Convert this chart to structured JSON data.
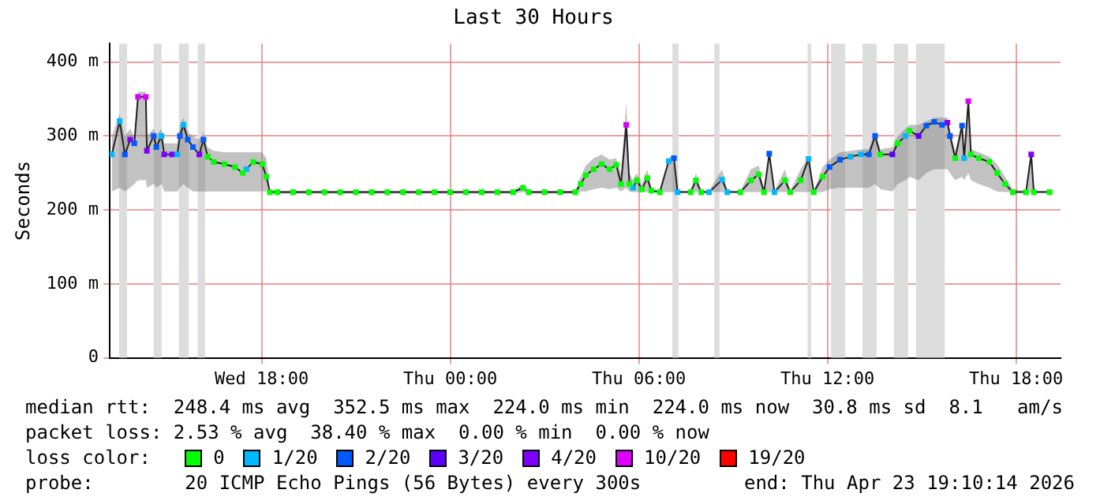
{
  "chart_data": {
    "type": "line",
    "title": "Last 30 Hours",
    "ylabel": "Seconds",
    "legend_title": "loss color:",
    "legend": "bottom",
    "grid": true,
    "marker": "square",
    "xlim": [
      "2026-04-22T13:10",
      "2026-04-23T19:25"
    ],
    "xticks": [
      {
        "value": "2026-04-22T18:00",
        "label": "Wed 18:00"
      },
      {
        "value": "2026-04-23T00:00",
        "label": "Thu 00:00"
      },
      {
        "value": "2026-04-23T06:00",
        "label": "Thu 06:00"
      },
      {
        "value": "2026-04-23T12:00",
        "label": "Thu 12:00"
      },
      {
        "value": "2026-04-23T18:00",
        "label": "Thu 18:00"
      }
    ],
    "ylim": [
      0,
      425
    ],
    "yticks": [
      0,
      {
        "value": 100,
        "label": "100 m"
      },
      {
        "value": 200,
        "label": "200 m"
      },
      {
        "value": 300,
        "label": "300 m"
      },
      {
        "value": 400,
        "label": "400 m"
      }
    ],
    "x": [
      "2026-04-22T13:14",
      "2026-04-22T13:29",
      "2026-04-22T13:39",
      "2026-04-22T13:49",
      "2026-04-22T13:57",
      "2026-04-22T14:04",
      "2026-04-22T14:19",
      "2026-04-22T14:21",
      "2026-04-22T14:34",
      "2026-04-22T14:39",
      "2026-04-22T14:49",
      "2026-04-22T14:54",
      "2026-04-22T15:09",
      "2026-04-22T15:19",
      "2026-04-22T15:24",
      "2026-04-22T15:31",
      "2026-04-22T15:39",
      "2026-04-22T15:49",
      "2026-04-22T16:01",
      "2026-04-22T16:09",
      "2026-04-22T16:17",
      "2026-04-22T16:29",
      "2026-04-22T16:49",
      "2026-04-22T17:09",
      "2026-04-22T17:24",
      "2026-04-22T17:31",
      "2026-04-22T17:44",
      "2026-04-22T18:01",
      "2026-04-22T18:09",
      "2026-04-22T18:16",
      "2026-04-22T18:30",
      "2026-04-22T19:00",
      "2026-04-22T19:30",
      "2026-04-22T20:00",
      "2026-04-22T20:30",
      "2026-04-22T21:00",
      "2026-04-22T21:30",
      "2026-04-22T22:00",
      "2026-04-22T22:30",
      "2026-04-22T23:00",
      "2026-04-22T23:30",
      "2026-04-23T00:00",
      "2026-04-23T00:30",
      "2026-04-23T01:00",
      "2026-04-23T01:30",
      "2026-04-23T02:00",
      "2026-04-23T02:19",
      "2026-04-23T02:30",
      "2026-04-23T03:00",
      "2026-04-23T03:30",
      "2026-04-23T03:59",
      "2026-04-23T04:09",
      "2026-04-23T04:19",
      "2026-04-23T04:34",
      "2026-04-23T04:49",
      "2026-04-23T05:04",
      "2026-04-23T05:17",
      "2026-04-23T05:26",
      "2026-04-23T05:36",
      "2026-04-23T05:42",
      "2026-04-23T05:49",
      "2026-04-23T05:56",
      "2026-04-23T06:06",
      "2026-04-23T06:16",
      "2026-04-23T06:24",
      "2026-04-23T06:40",
      "2026-04-23T06:57",
      "2026-04-23T07:07",
      "2026-04-23T07:14",
      "2026-04-23T07:39",
      "2026-04-23T07:49",
      "2026-04-23T07:59",
      "2026-04-23T08:14",
      "2026-04-23T08:39",
      "2026-04-23T08:49",
      "2026-04-23T09:14",
      "2026-04-23T09:34",
      "2026-04-23T09:49",
      "2026-04-23T09:59",
      "2026-04-23T10:09",
      "2026-04-23T10:19",
      "2026-04-23T10:39",
      "2026-04-23T10:49",
      "2026-04-23T11:09",
      "2026-04-23T11:24",
      "2026-04-23T11:34",
      "2026-04-23T11:51",
      "2026-04-23T12:04",
      "2026-04-23T12:24",
      "2026-04-23T12:44",
      "2026-04-23T13:04",
      "2026-04-23T13:19",
      "2026-04-23T13:31",
      "2026-04-23T13:41",
      "2026-04-23T14:04",
      "2026-04-23T14:14",
      "2026-04-23T14:29",
      "2026-04-23T14:37",
      "2026-04-23T14:54",
      "2026-04-23T15:09",
      "2026-04-23T15:24",
      "2026-04-23T15:39",
      "2026-04-23T15:49",
      "2026-04-23T15:54",
      "2026-04-23T16:04",
      "2026-04-23T16:17",
      "2026-04-23T16:21",
      "2026-04-23T16:29",
      "2026-04-23T16:34",
      "2026-04-23T16:49",
      "2026-04-23T17:09",
      "2026-04-23T17:24",
      "2026-04-23T17:39",
      "2026-04-23T17:54",
      "2026-04-23T18:19",
      "2026-04-23T18:29",
      "2026-04-23T18:34",
      "2026-04-23T19:04"
    ],
    "series": [
      {
        "color": "#202020",
        "marker": "none",
        "values": [
          275,
          320,
          275,
          295,
          290,
          353,
          353,
          280,
          300,
          285,
          300,
          275,
          275,
          275,
          300,
          315,
          295,
          285,
          275,
          295,
          272,
          265,
          262,
          258,
          250,
          255,
          265,
          262,
          245,
          224,
          224,
          224,
          224,
          224,
          224,
          224,
          224,
          224,
          224,
          224,
          224,
          224,
          224,
          224,
          224,
          224,
          230,
          224,
          224,
          224,
          224,
          235,
          247,
          255,
          262,
          255,
          261,
          235,
          315,
          235,
          230,
          240,
          228,
          243,
          226,
          224,
          266,
          270,
          224,
          224,
          240,
          224,
          224,
          241,
          224,
          224,
          240,
          248,
          224,
          276,
          224,
          240,
          224,
          240,
          269,
          224,
          245,
          258,
          268,
          272,
          275,
          275,
          300,
          275,
          275,
          290,
          300,
          307,
          300,
          314,
          319,
          315,
          318,
          300,
          270,
          314,
          270,
          347,
          275,
          270,
          265,
          250,
          235,
          224,
          224,
          275,
          224,
          224
        ],
        "lower": [
          225,
          230,
          225,
          230,
          235,
          240,
          240,
          230,
          235,
          230,
          235,
          225,
          225,
          225,
          230,
          235,
          230,
          225,
          225,
          225,
          225,
          225,
          225,
          225,
          225,
          225,
          225,
          225,
          225,
          222,
          222,
          222,
          222,
          222,
          222,
          222,
          222,
          222,
          222,
          222,
          222,
          222,
          222,
          222,
          222,
          222,
          224,
          222,
          222,
          222,
          222,
          225,
          225,
          228,
          230,
          228,
          230,
          225,
          230,
          225,
          224,
          224,
          224,
          224,
          224,
          224,
          224,
          224,
          224,
          224,
          224,
          224,
          224,
          224,
          224,
          224,
          224,
          224,
          224,
          224,
          224,
          224,
          224,
          224,
          224,
          224,
          224,
          228,
          230,
          230,
          230,
          230,
          235,
          228,
          225,
          235,
          240,
          245,
          240,
          250,
          255,
          255,
          255,
          250,
          240,
          245,
          240,
          250,
          240,
          235,
          230,
          225,
          224,
          224,
          224,
          224,
          224,
          224
        ],
        "upper": [
          300,
          330,
          300,
          310,
          300,
          360,
          360,
          300,
          310,
          300,
          310,
          290,
          290,
          290,
          315,
          325,
          305,
          300,
          295,
          305,
          285,
          280,
          278,
          278,
          278,
          278,
          278,
          278,
          270,
          226,
          226,
          226,
          226,
          226,
          226,
          226,
          226,
          226,
          226,
          226,
          226,
          226,
          226,
          226,
          226,
          226,
          235,
          226,
          226,
          226,
          226,
          245,
          260,
          270,
          275,
          268,
          270,
          250,
          345,
          250,
          240,
          250,
          235,
          255,
          230,
          226,
          270,
          275,
          226,
          226,
          250,
          226,
          226,
          255,
          226,
          226,
          255,
          260,
          226,
          280,
          226,
          255,
          226,
          255,
          272,
          226,
          258,
          268,
          278,
          280,
          282,
          282,
          305,
          282,
          285,
          300,
          310,
          315,
          315,
          320,
          325,
          325,
          325,
          310,
          280,
          320,
          280,
          350,
          282,
          278,
          272,
          262,
          245,
          228,
          226,
          278,
          226,
          226
        ]
      },
      {
        "name": "0",
        "type": "scatter",
        "color": "#00ff00",
        "x": [
          "2026-04-22T16:17",
          "2026-04-22T16:29",
          "2026-04-22T16:49",
          "2026-04-22T17:09",
          "2026-04-22T17:24",
          "2026-04-22T17:44",
          "2026-04-22T18:01",
          "2026-04-22T18:09",
          "2026-04-22T18:16",
          "2026-04-22T18:30",
          "2026-04-22T19:00",
          "2026-04-22T19:30",
          "2026-04-22T20:00",
          "2026-04-22T20:30",
          "2026-04-22T21:00",
          "2026-04-22T21:30",
          "2026-04-22T22:00",
          "2026-04-22T22:30",
          "2026-04-22T23:00",
          "2026-04-22T23:30",
          "2026-04-23T00:00",
          "2026-04-23T00:30",
          "2026-04-23T01:00",
          "2026-04-23T01:30",
          "2026-04-23T02:00",
          "2026-04-23T02:19",
          "2026-04-23T02:30",
          "2026-04-23T03:00",
          "2026-04-23T03:30",
          "2026-04-23T03:59",
          "2026-04-23T04:09",
          "2026-04-23T04:19",
          "2026-04-23T04:34",
          "2026-04-23T04:49",
          "2026-04-23T05:04",
          "2026-04-23T05:17",
          "2026-04-23T05:26",
          "2026-04-23T05:42",
          "2026-04-23T05:56",
          "2026-04-23T06:06",
          "2026-04-23T06:16",
          "2026-04-23T06:24",
          "2026-04-23T06:40",
          "2026-04-23T07:39",
          "2026-04-23T07:49",
          "2026-04-23T07:59",
          "2026-04-23T09:14",
          "2026-04-23T09:34",
          "2026-04-23T09:49",
          "2026-04-23T09:59",
          "2026-04-23T10:39",
          "2026-04-23T10:49",
          "2026-04-23T11:09",
          "2026-04-23T11:34",
          "2026-04-23T11:51",
          "2026-04-23T13:41",
          "2026-04-23T14:14",
          "2026-04-23T14:37",
          "2026-04-23T16:04",
          "2026-04-23T16:34",
          "2026-04-23T16:49",
          "2026-04-23T17:09",
          "2026-04-23T17:24",
          "2026-04-23T17:39",
          "2026-04-23T17:54",
          "2026-04-23T18:19",
          "2026-04-23T18:34",
          "2026-04-23T19:04"
        ],
        "values": [
          272,
          265,
          262,
          258,
          250,
          265,
          262,
          245,
          224,
          224,
          224,
          224,
          224,
          224,
          224,
          224,
          224,
          224,
          224,
          224,
          224,
          224,
          224,
          224,
          224,
          230,
          224,
          224,
          224,
          224,
          235,
          247,
          255,
          262,
          255,
          261,
          235,
          235,
          240,
          228,
          243,
          226,
          224,
          224,
          240,
          224,
          224,
          240,
          248,
          224,
          240,
          224,
          240,
          224,
          245,
          275,
          290,
          307,
          270,
          275,
          270,
          265,
          250,
          235,
          224,
          224,
          224,
          224
        ]
      },
      {
        "name": "1/20",
        "type": "scatter",
        "color": "#00b8ff",
        "x": [
          "2026-04-22T13:14",
          "2026-04-22T13:29",
          "2026-04-22T14:49",
          "2026-04-22T15:19",
          "2026-04-22T15:31",
          "2026-04-22T17:31",
          "2026-04-23T05:49",
          "2026-04-23T06:57",
          "2026-04-23T07:14",
          "2026-04-23T08:14",
          "2026-04-23T08:39",
          "2026-04-23T08:49",
          "2026-04-23T10:19",
          "2026-04-23T11:24",
          "2026-04-23T12:44",
          "2026-04-23T13:04",
          "2026-04-23T14:29",
          "2026-04-23T16:21"
        ],
        "values": [
          275,
          320,
          300,
          275,
          315,
          255,
          230,
          266,
          224,
          224,
          241,
          224,
          224,
          269,
          272,
          275,
          300,
          270
        ]
      },
      {
        "name": "2/20",
        "type": "scatter",
        "color": "#0059ff",
        "x": [
          "2026-04-22T13:39",
          "2026-04-22T13:57",
          "2026-04-22T14:34",
          "2026-04-22T14:39",
          "2026-04-22T15:24",
          "2026-04-22T15:39",
          "2026-04-22T15:49",
          "2026-04-22T16:09",
          "2026-04-23T07:07",
          "2026-04-23T10:09",
          "2026-04-23T12:04",
          "2026-04-23T12:24",
          "2026-04-23T13:19",
          "2026-04-23T13:31",
          "2026-04-23T15:09",
          "2026-04-23T15:24",
          "2026-04-23T15:39",
          "2026-04-23T15:54",
          "2026-04-23T16:17"
        ],
        "values": [
          275,
          290,
          300,
          285,
          300,
          295,
          285,
          295,
          270,
          276,
          258,
          268,
          275,
          300,
          314,
          319,
          315,
          300,
          314
        ]
      },
      {
        "name": "3/20",
        "type": "scatter",
        "color": "#5e00ff",
        "x": [
          "2026-04-23T14:04",
          "2026-04-23T14:54"
        ],
        "values": [
          275,
          300
        ]
      },
      {
        "name": "4/20",
        "type": "scatter",
        "color": "#7e00ff",
        "x": [
          "2026-04-22T13:49",
          "2026-04-22T14:21",
          "2026-04-22T14:54",
          "2026-04-22T15:09",
          "2026-04-22T16:01",
          "2026-04-23T15:49",
          "2026-04-23T18:29"
        ],
        "values": [
          295,
          280,
          275,
          275,
          275,
          318,
          275
        ]
      },
      {
        "name": "10/20",
        "type": "scatter",
        "color": "#dd00ff",
        "x": [
          "2026-04-22T14:04",
          "2026-04-22T14:19",
          "2026-04-23T05:36",
          "2026-04-23T16:29"
        ],
        "values": [
          353,
          353,
          315,
          347
        ]
      },
      {
        "name": "19/20",
        "type": "scatter",
        "color": "#ff0000",
        "values": [
          null,
          null,
          null,
          null,
          null,
          null,
          null,
          null,
          null,
          null,
          null,
          null,
          null,
          null,
          null,
          null,
          null,
          null,
          null,
          null,
          null,
          null,
          null,
          null,
          null,
          null,
          null,
          null,
          null,
          null,
          null,
          null,
          null,
          null,
          null,
          null,
          null,
          null,
          null,
          null,
          null,
          null,
          null,
          null,
          null,
          null,
          null,
          null,
          null,
          null,
          null,
          null,
          null,
          null,
          null,
          null,
          null,
          null,
          null,
          null,
          null,
          null,
          null,
          null,
          null,
          null,
          null,
          null,
          null,
          null,
          null,
          null,
          null,
          null,
          null,
          null,
          null,
          null,
          null,
          null,
          null,
          null,
          null,
          null,
          null,
          null,
          null,
          null,
          null,
          null,
          null,
          null,
          null,
          null,
          null,
          null,
          null,
          null,
          null,
          null,
          null,
          null,
          null,
          null,
          null,
          null,
          null,
          null,
          null,
          null,
          null,
          null,
          null,
          null,
          null,
          null,
          null,
          null
        ]
      }
    ],
    "bands": [
      {
        "axis": "x",
        "from": "2026-04-22T13:28",
        "to": "2026-04-22T13:43",
        "color": "#dddddd"
      },
      {
        "axis": "x",
        "from": "2026-04-22T14:34",
        "to": "2026-04-22T14:49",
        "color": "#dddddd"
      },
      {
        "axis": "x",
        "from": "2026-04-22T15:22",
        "to": "2026-04-22T15:41",
        "color": "#dddddd"
      },
      {
        "axis": "x",
        "from": "2026-04-22T15:58",
        "to": "2026-04-22T16:12",
        "color": "#dddddd"
      },
      {
        "axis": "x",
        "from": "2026-04-23T07:04",
        "to": "2026-04-23T07:16",
        "color": "#dddddd"
      },
      {
        "axis": "x",
        "from": "2026-04-23T08:24",
        "to": "2026-04-23T08:34",
        "color": "#dddddd"
      },
      {
        "axis": "x",
        "from": "2026-04-23T11:22",
        "to": "2026-04-23T11:29",
        "color": "#dddddd"
      },
      {
        "axis": "x",
        "from": "2026-04-23T12:07",
        "to": "2026-04-23T12:34",
        "color": "#dddddd"
      },
      {
        "axis": "x",
        "from": "2026-04-23T13:07",
        "to": "2026-04-23T13:34",
        "color": "#dddddd"
      },
      {
        "axis": "x",
        "from": "2026-04-23T14:07",
        "to": "2026-04-23T14:34",
        "color": "#dddddd"
      },
      {
        "axis": "x",
        "from": "2026-04-23T14:49",
        "to": "2026-04-23T15:44",
        "color": "#dddddd"
      }
    ],
    "annotations": [
      "median rtt:  248.4 ms avg  352.5 ms max  224.0 ms min  224.0 ms now  30.8 ms sd  8.1   am/s",
      "packet loss: 2.53 % avg  38.40 % max  0.00 % min  0.00 % now",
      "probe:        20 ICMP Echo Pings (56 Bytes) every 300s",
      "end: Thu Apr 23 19:10:14 2026"
    ]
  }
}
